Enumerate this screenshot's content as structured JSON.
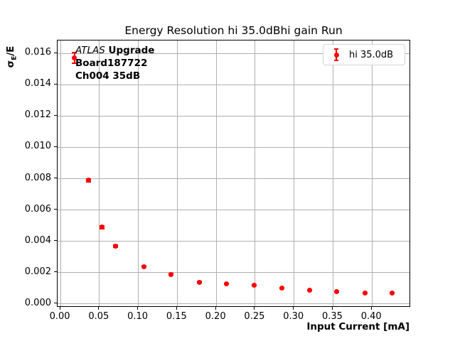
{
  "figure": {
    "background": "#ffffff"
  },
  "annotation": {
    "line1_italic": "ATLAS",
    "line1_bold": " Upgrade",
    "line2": "Board187722",
    "line3": "Ch004 35dB"
  },
  "colors": {
    "marker": "#ff0000",
    "grid": "#b0b0b0",
    "spine": "#000000",
    "legend_border": "#d5d5d5",
    "text": "#000000"
  },
  "chart_data": {
    "type": "scatter",
    "title": "Energy Resolution hi 35.0dBhi gain Run",
    "xlabel": "Input Current [mA]",
    "ylabel": "σE/E",
    "ylabel_parts": {
      "sigma": "σ",
      "sub": "E",
      "rest": "/E"
    },
    "xlim": [
      -0.0037,
      0.45
    ],
    "ylim": [
      -0.00023,
      0.01682
    ],
    "xticks": [
      0.0,
      0.05,
      0.1,
      0.15,
      0.2,
      0.25,
      0.3,
      0.35,
      0.4
    ],
    "xtick_labels": [
      "0.00",
      "0.05",
      "0.10",
      "0.15",
      "0.20",
      "0.25",
      "0.30",
      "0.35",
      "0.40"
    ],
    "yticks": [
      0.0,
      0.002,
      0.004,
      0.006,
      0.008,
      0.01,
      0.012,
      0.014,
      0.016
    ],
    "ytick_labels": [
      "0.000",
      "0.002",
      "0.004",
      "0.006",
      "0.008",
      "0.010",
      "0.012",
      "0.014",
      "0.016"
    ],
    "grid": true,
    "legend": {
      "label": "hi 35.0dB",
      "position": "upper right"
    },
    "series": [
      {
        "name": "hi 35.0dB",
        "color": "#ff0000",
        "marker": "o",
        "x": [
          0.018,
          0.036,
          0.053,
          0.071,
          0.107,
          0.142,
          0.178,
          0.213,
          0.249,
          0.284,
          0.32,
          0.355,
          0.391,
          0.426
        ],
        "y": [
          0.0157,
          0.0079,
          0.0049,
          0.0037,
          0.0024,
          0.0019,
          0.0014,
          0.0013,
          0.0012,
          0.001,
          0.0009,
          0.0008,
          0.0007,
          0.0007
        ],
        "yerr": [
          0.00035,
          0.0001,
          8e-05,
          6e-05,
          5e-05,
          4e-05,
          3e-05,
          3e-05,
          3e-05,
          2e-05,
          2e-05,
          2e-05,
          2e-05,
          2e-05
        ]
      }
    ]
  }
}
